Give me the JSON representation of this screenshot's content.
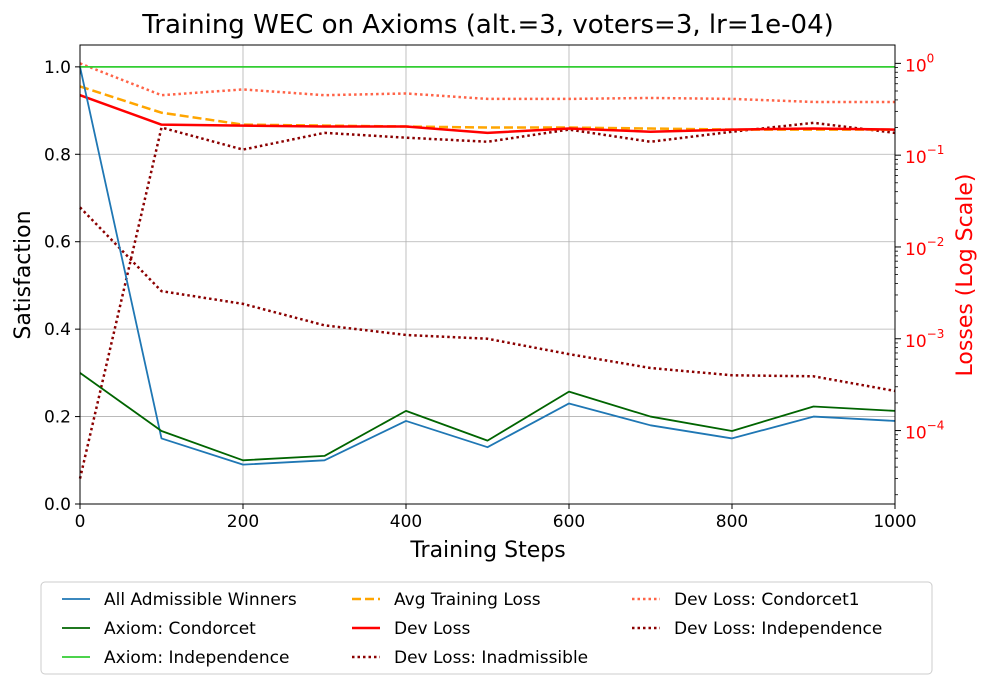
{
  "chart_data": {
    "type": "line",
    "title": "Training WEC on Axioms (alt.=3, voters=3, lr=1e-04)",
    "xlabel": "Training Steps",
    "ylabel": "Satisfaction",
    "y2label": "Losses (Log Scale)",
    "xlim": [
      0,
      1000
    ],
    "ylim": [
      0,
      1.05
    ],
    "y2lim_log10": [
      -4.8,
      0.2
    ],
    "y2scale": "log",
    "grid": true,
    "legend_position": "bottom-center",
    "x_ticks": [
      0,
      200,
      400,
      600,
      800,
      1000
    ],
    "x_tick_labels": [
      "0",
      "200",
      "400",
      "600",
      "800",
      "1000"
    ],
    "y_ticks": [
      0,
      0.2,
      0.4,
      0.6,
      0.8,
      1.0
    ],
    "y_tick_labels": [
      "0.0",
      "0.2",
      "0.4",
      "0.6",
      "0.8",
      "1.0"
    ],
    "y2_ticks_log10": [
      -4,
      -3,
      -2,
      -1,
      0
    ],
    "y2_tick_labels": [
      "10",
      "10",
      "10",
      "10",
      "10"
    ],
    "y2_tick_exponents": [
      "−4",
      "−3",
      "−2",
      "−1",
      "0"
    ],
    "x": [
      0,
      100,
      200,
      300,
      400,
      500,
      600,
      700,
      800,
      900,
      1000
    ],
    "series": [
      {
        "name": "All Admissible Winners",
        "axis": "left",
        "color": "#1f77b4",
        "dash": "solid",
        "width": 1.8,
        "values": [
          1.0,
          0.15,
          0.09,
          0.1,
          0.19,
          0.13,
          0.23,
          0.18,
          0.15,
          0.2,
          0.19
        ]
      },
      {
        "name": "Axiom: Condorcet",
        "axis": "left",
        "color": "#006400",
        "dash": "solid",
        "width": 1.8,
        "values": [
          0.3,
          0.167,
          0.1,
          0.11,
          0.213,
          0.145,
          0.257,
          0.2,
          0.167,
          0.223,
          0.213
        ]
      },
      {
        "name": "Axiom: Independence",
        "axis": "left",
        "color": "#32cd32",
        "dash": "solid",
        "width": 1.8,
        "values": [
          1.0,
          1.0,
          1.0,
          1.0,
          1.0,
          1.0,
          1.0,
          1.0,
          1.0,
          1.0,
          1.0
        ]
      },
      {
        "name": "Avg Training Loss",
        "axis": "right",
        "color": "#ffa500",
        "dash": "dashed",
        "width": 2.5,
        "values": [
          0.56,
          0.29,
          0.215,
          0.21,
          0.205,
          0.2,
          0.2,
          0.195,
          0.19,
          0.19,
          0.19
        ]
      },
      {
        "name": "Dev Loss",
        "axis": "right",
        "color": "#ff0000",
        "dash": "solid",
        "width": 2.5,
        "values": [
          0.45,
          0.215,
          0.21,
          0.205,
          0.205,
          0.175,
          0.195,
          0.18,
          0.19,
          0.195,
          0.19
        ]
      },
      {
        "name": "Dev Loss: Inadmissible",
        "axis": "right",
        "color": "#8b0000",
        "dash": "dotted",
        "width": 2.5,
        "values": [
          3e-05,
          0.2,
          0.115,
          0.175,
          0.155,
          0.14,
          0.19,
          0.14,
          0.18,
          0.225,
          0.175
        ]
      },
      {
        "name": "Dev Loss: Condorcet1",
        "axis": "right",
        "color": "#ff6347",
        "dash": "dotted",
        "width": 2.5,
        "values": [
          1.0,
          0.45,
          0.52,
          0.45,
          0.47,
          0.41,
          0.41,
          0.42,
          0.41,
          0.38,
          0.38
        ]
      },
      {
        "name": "Dev Loss: Independence",
        "axis": "right",
        "color": "#8b0000",
        "dash": "dotted",
        "width": 2.5,
        "values": [
          0.027,
          0.0033,
          0.0024,
          0.0014,
          0.0011,
          0.001,
          0.00068,
          0.00048,
          0.0004,
          0.00039,
          0.00027
        ]
      }
    ],
    "legend": [
      [
        "All Admissible Winners",
        "Axiom: Condorcet",
        "Axiom: Independence"
      ],
      [
        "Avg Training Loss",
        "Dev Loss",
        "Dev Loss: Inadmissible"
      ],
      [
        "Dev Loss: Condorcet1",
        "Dev Loss: Independence"
      ]
    ],
    "colors": {
      "right_axis": "#ff0000",
      "grid": "#b0b0b0",
      "text": "#000000"
    }
  }
}
